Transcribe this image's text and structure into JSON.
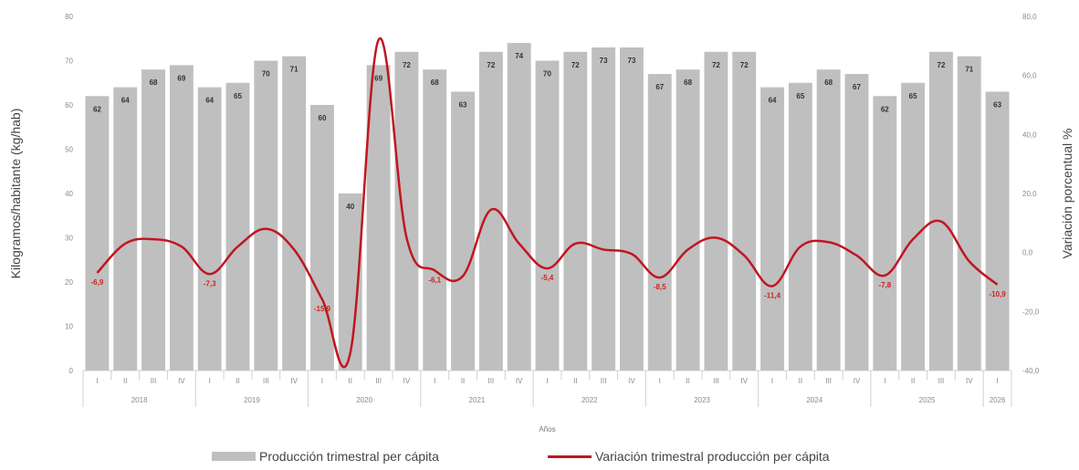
{
  "chart_data": {
    "type": "bar",
    "title": "",
    "xlabel": "Años",
    "ylabel": "Kilogramos/habitante (kg/hab)",
    "y2label": "Variación porcentual %",
    "ylim": [
      0,
      80
    ],
    "y2lim": [
      -40,
      80
    ],
    "yticks": [
      "0",
      "10",
      "20",
      "30",
      "40",
      "50",
      "60",
      "70",
      "80"
    ],
    "y2ticks": [
      "-40,0",
      "-20,0",
      "0,0",
      "20,0",
      "40,0",
      "60,0",
      "80,0"
    ],
    "categories": [
      "I",
      "II",
      "III",
      "IV",
      "I",
      "II",
      "III",
      "IV",
      "I",
      "II",
      "III",
      "IV",
      "I",
      "II",
      "III",
      "IV",
      "I",
      "II",
      "III",
      "IV",
      "I",
      "II",
      "III",
      "IV",
      "I",
      "II",
      "III",
      "IV",
      "I",
      "II",
      "III",
      "IV",
      "I"
    ],
    "years": [
      "2018",
      "2019",
      "2020",
      "2021",
      "2022",
      "2023",
      "2024",
      "2025",
      "2026"
    ],
    "legend_position": "bottom",
    "series": [
      {
        "name": "Producción trimestral per cápita",
        "type": "bar",
        "color": "#bfbfbf",
        "values": [
          62,
          64,
          68,
          69,
          64,
          65,
          70,
          71,
          60,
          40,
          69,
          72,
          68,
          63,
          72,
          74,
          70,
          72,
          73,
          73,
          67,
          68,
          72,
          72,
          64,
          65,
          68,
          67,
          62,
          65,
          72,
          71,
          63
        ],
        "data_labels": [
          "62",
          "64",
          "68",
          "69",
          "64",
          "65",
          "70",
          "71",
          "60",
          "40",
          "69",
          "72",
          "68",
          "63",
          "72",
          "74",
          "70",
          "72",
          "73",
          "73",
          "67",
          "68",
          "72",
          "72",
          "64",
          "65",
          "68",
          "67",
          "62",
          "65",
          "72",
          "71",
          "63"
        ]
      },
      {
        "name": "Variación trimestral producción per cápita",
        "type": "line",
        "axis": "right",
        "color": "#c0161f",
        "values": [
          -6.9,
          3.0,
          4.5,
          2.0,
          -7.3,
          2.0,
          8.0,
          1.0,
          -15.9,
          -34.0,
          72.0,
          5.0,
          -6.1,
          -8.0,
          14.5,
          3.0,
          -5.4,
          3.0,
          1.0,
          -0.5,
          -8.5,
          1.0,
          5.0,
          -1.0,
          -11.4,
          2.0,
          3.5,
          -1.0,
          -7.8,
          4.5,
          10.5,
          -3.0,
          -10.9
        ],
        "data_labels": [
          "-6,9",
          "",
          "",
          "",
          "-7,3",
          "",
          "",
          "",
          "-15,9",
          "",
          "",
          "",
          "-6,1",
          "",
          "",
          "",
          "-5,4",
          "",
          "",
          "",
          "-8,5",
          "",
          "",
          "",
          "-11,4",
          "",
          "",
          "",
          "-7,8",
          "",
          "",
          "",
          "-10,9"
        ]
      }
    ]
  }
}
